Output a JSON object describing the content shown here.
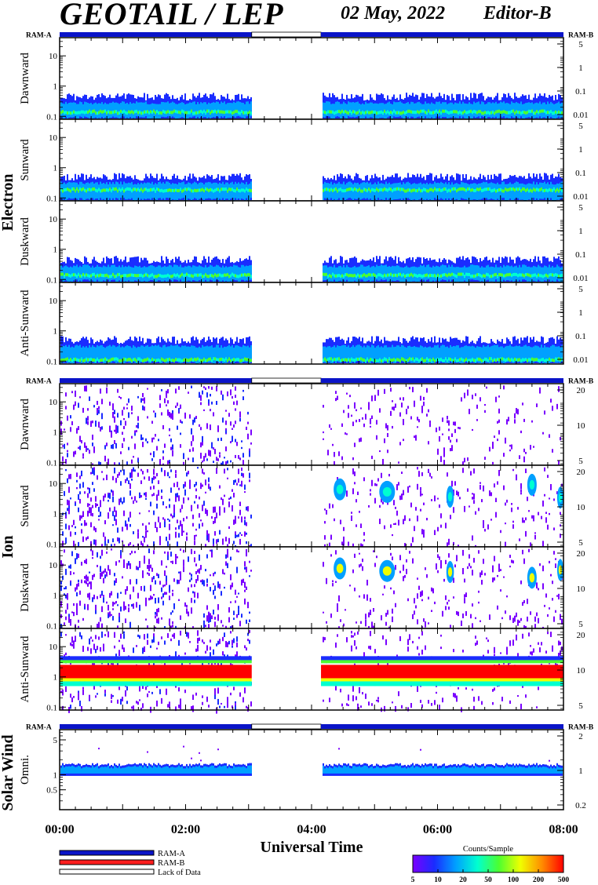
{
  "header": {
    "title": "GEOTAIL / LEP",
    "date": "02 May, 2022",
    "editor": "Editor-B"
  },
  "chart_data": {
    "type": "heatmap",
    "x_axis": {
      "title": "Universal Time",
      "range_hours": [
        0,
        8
      ],
      "tick_labels": [
        "00:00",
        "02:00",
        "04:00",
        "06:00",
        "08:00"
      ],
      "tick_hours": [
        0,
        2,
        4,
        6,
        8
      ]
    },
    "data_gap_hours": [
      3.05,
      4.15
    ],
    "ram_bar_labels": {
      "left": "RAM-A",
      "right": "RAM-B"
    },
    "groups": [
      {
        "name": "Electron",
        "left_axis": {
          "scale": "log",
          "range": [
            0.08,
            40
          ],
          "ticks": [
            0.1,
            1,
            10
          ],
          "tick_labels": [
            "0.1",
            "1",
            "10"
          ]
        },
        "right_axis": {
          "scale": "log",
          "ticks": [
            0.01,
            0.1,
            1,
            5
          ],
          "tick_labels": [
            "0.01",
            "0.1",
            "1",
            "5"
          ]
        },
        "panels": [
          {
            "label": "Dawnward",
            "band_top": 0.45,
            "band_core": 0.15
          },
          {
            "label": "Sunward",
            "band_top": 0.5,
            "band_core": 0.2
          },
          {
            "label": "Duskward",
            "band_top": 0.45,
            "band_core": 0.15
          },
          {
            "label": "Anti-Sunward",
            "band_top": 0.5,
            "band_core": 0.12
          }
        ]
      },
      {
        "name": "Ion",
        "left_axis": {
          "scale": "log",
          "range": [
            0.08,
            40
          ],
          "ticks": [
            0.1,
            1,
            10
          ],
          "tick_labels": [
            "0.1",
            "1",
            "10"
          ]
        },
        "right_axis": {
          "scale": "log",
          "ticks": [
            5,
            10,
            20
          ],
          "tick_labels": [
            "5",
            "10",
            "20"
          ]
        },
        "panels": [
          {
            "label": "Dawnward",
            "activity": "sparse"
          },
          {
            "label": "Sunward",
            "activity": "patchy"
          },
          {
            "label": "Duskward",
            "activity": "patchy"
          },
          {
            "label": "Anti-Sunward",
            "activity": "intense band 0.8–3"
          }
        ]
      },
      {
        "name": "Solar Wind",
        "left_axis": {
          "scale": "log",
          "range": [
            0.2,
            8
          ],
          "ticks": [
            0.5,
            1,
            5
          ],
          "tick_labels": [
            "0.5",
            "1",
            "5"
          ]
        },
        "right_axis": {
          "scale": "log",
          "ticks": [
            0.2,
            1,
            2
          ],
          "tick_labels": [
            "0.2",
            "1",
            "2"
          ]
        },
        "panels": [
          {
            "label": "Omni.",
            "band_top": 1.6,
            "band_core": 1.2
          }
        ]
      }
    ],
    "colorbar": {
      "title": "Counts/Sample",
      "tick_labels": [
        "5",
        "10",
        "20",
        "50",
        "100",
        "200",
        "500"
      ],
      "colors": [
        "#7a00ff",
        "#1a2cff",
        "#00a0ff",
        "#00ffd0",
        "#4cff30",
        "#f0ff00",
        "#ff8c00",
        "#ff0000"
      ]
    },
    "legend": [
      {
        "label": "RAM-A",
        "color": "#0a14c8"
      },
      {
        "label": "RAM-B",
        "color": "#ff1e1e"
      },
      {
        "label": "Lack of Data",
        "color": "#ffffff"
      }
    ]
  }
}
